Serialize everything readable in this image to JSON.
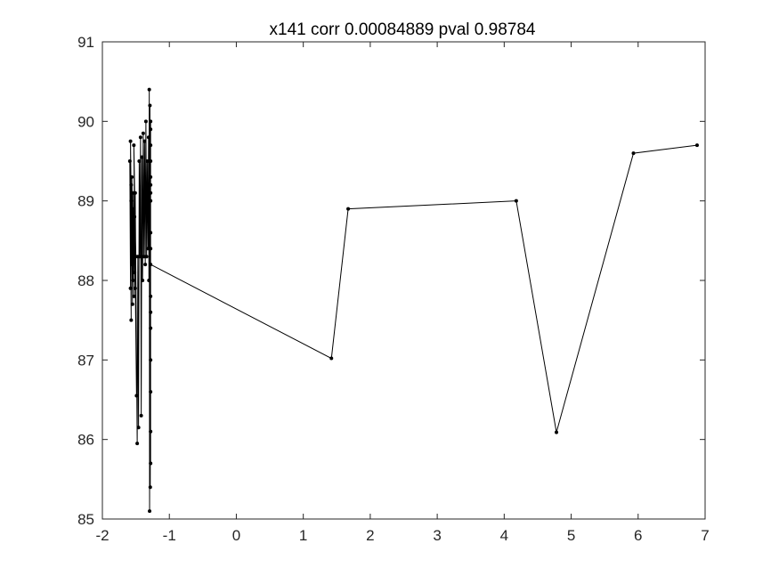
{
  "chart_data": {
    "type": "line",
    "title": "x141 corr 0.00084889 pval 0.98784",
    "xlabel": "",
    "ylabel": "",
    "xlim": [
      -2,
      7
    ],
    "ylim": [
      85,
      91
    ],
    "xticks": [
      -2,
      -1,
      0,
      1,
      2,
      3,
      4,
      5,
      6,
      7
    ],
    "yticks": [
      85,
      86,
      87,
      88,
      89,
      90,
      91
    ],
    "grid": false,
    "marker": "point",
    "series": [
      {
        "color": "#000000",
        "x": [
          -1.58,
          -1.59,
          -1.57,
          -1.58,
          -1.56,
          -1.57,
          -1.55,
          -1.57,
          -1.54,
          -1.56,
          -1.53,
          -1.55,
          -1.52,
          -1.54,
          -1.51,
          -1.53,
          -1.5,
          -1.52,
          -1.49,
          -1.51,
          -1.48,
          -1.47,
          -1.46,
          -1.45,
          -1.44,
          -1.43,
          -1.42,
          -1.41,
          -1.4,
          -1.39,
          -1.38,
          -1.37,
          -1.36,
          -1.35,
          -1.34,
          -1.33,
          -1.32,
          -1.31,
          -1.305,
          -1.3,
          -1.295,
          -1.29,
          -1.285,
          -1.28,
          -1.28,
          -1.28,
          -1.28,
          -1.28,
          -1.28,
          -1.28,
          -1.28,
          -1.28,
          -1.28,
          -1.28,
          -1.28,
          -1.28,
          -1.28,
          -1.28,
          -1.28,
          -1.28,
          -1.28,
          1.42,
          1.67,
          4.18,
          4.78,
          5.93,
          6.88
        ],
        "y": [
          87.9,
          89.5,
          87.5,
          89.75,
          88.2,
          89.2,
          87.7,
          89.0,
          88.0,
          89.3,
          87.8,
          88.9,
          88.1,
          89.1,
          87.9,
          89.7,
          88.3,
          88.8,
          86.55,
          89.1,
          85.95,
          88.3,
          86.15,
          89.5,
          88.3,
          89.8,
          86.3,
          89.55,
          88.0,
          89.85,
          88.3,
          89.75,
          88.2,
          90.0,
          88.3,
          89.5,
          88.4,
          89.8,
          88.0,
          90.4,
          85.1,
          90.2,
          85.4,
          90.0,
          85.7,
          89.9,
          86.1,
          89.7,
          86.6,
          89.5,
          87.0,
          89.3,
          87.4,
          89.1,
          87.8,
          89.0,
          88.4,
          89.2,
          87.6,
          88.6,
          88.2,
          87.02,
          88.9,
          89.0,
          86.09,
          89.6,
          89.7
        ]
      }
    ]
  }
}
